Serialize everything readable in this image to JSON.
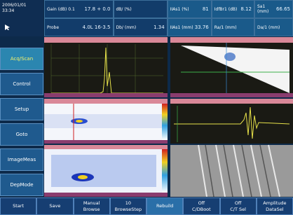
{
  "status": {
    "date": "2006/01/01",
    "time": "33:34"
  },
  "readouts": [
    [
      {
        "label": "Gain (dB) 0.1",
        "value": "17.8 + 0.0"
      },
      {
        "label": "dB/ (%)"
      },
      {
        "label": "IIAs1 (%)",
        "value": "81"
      },
      {
        "label": "IdfBr1 (dB)",
        "value": "8.12"
      },
      {
        "label": "Sa1 (mm)",
        "value": "66.65"
      }
    ],
    [
      {
        "label": "Probe",
        "value": "4.0L 16-3.5"
      },
      {
        "label": "Db/ (mm)",
        "value": "1.34"
      },
      {
        "label": "IIAs1 (mm)",
        "value": "33.76"
      },
      {
        "label": "Ra/1 (mm)"
      },
      {
        "label": "Da/1 (mm)"
      }
    ]
  ],
  "menu": [
    "Acq/Scan",
    "Control",
    "Setup",
    "Goto",
    "ImageMeas",
    "DepMode"
  ],
  "footer": [
    {
      "top": "Start"
    },
    {
      "top": "Save"
    },
    {
      "top": "Manual",
      "bottom": "Browse"
    },
    {
      "top": "10",
      "bottom": "BrowseStep"
    },
    {
      "top": "Rebuild"
    },
    {
      "top": "Off",
      "bottom": "C/DBoot"
    },
    {
      "top": "Off",
      "bottom": "C/T Sel"
    },
    {
      "top": "Amplitude",
      "bottom": "DataSel"
    }
  ]
}
